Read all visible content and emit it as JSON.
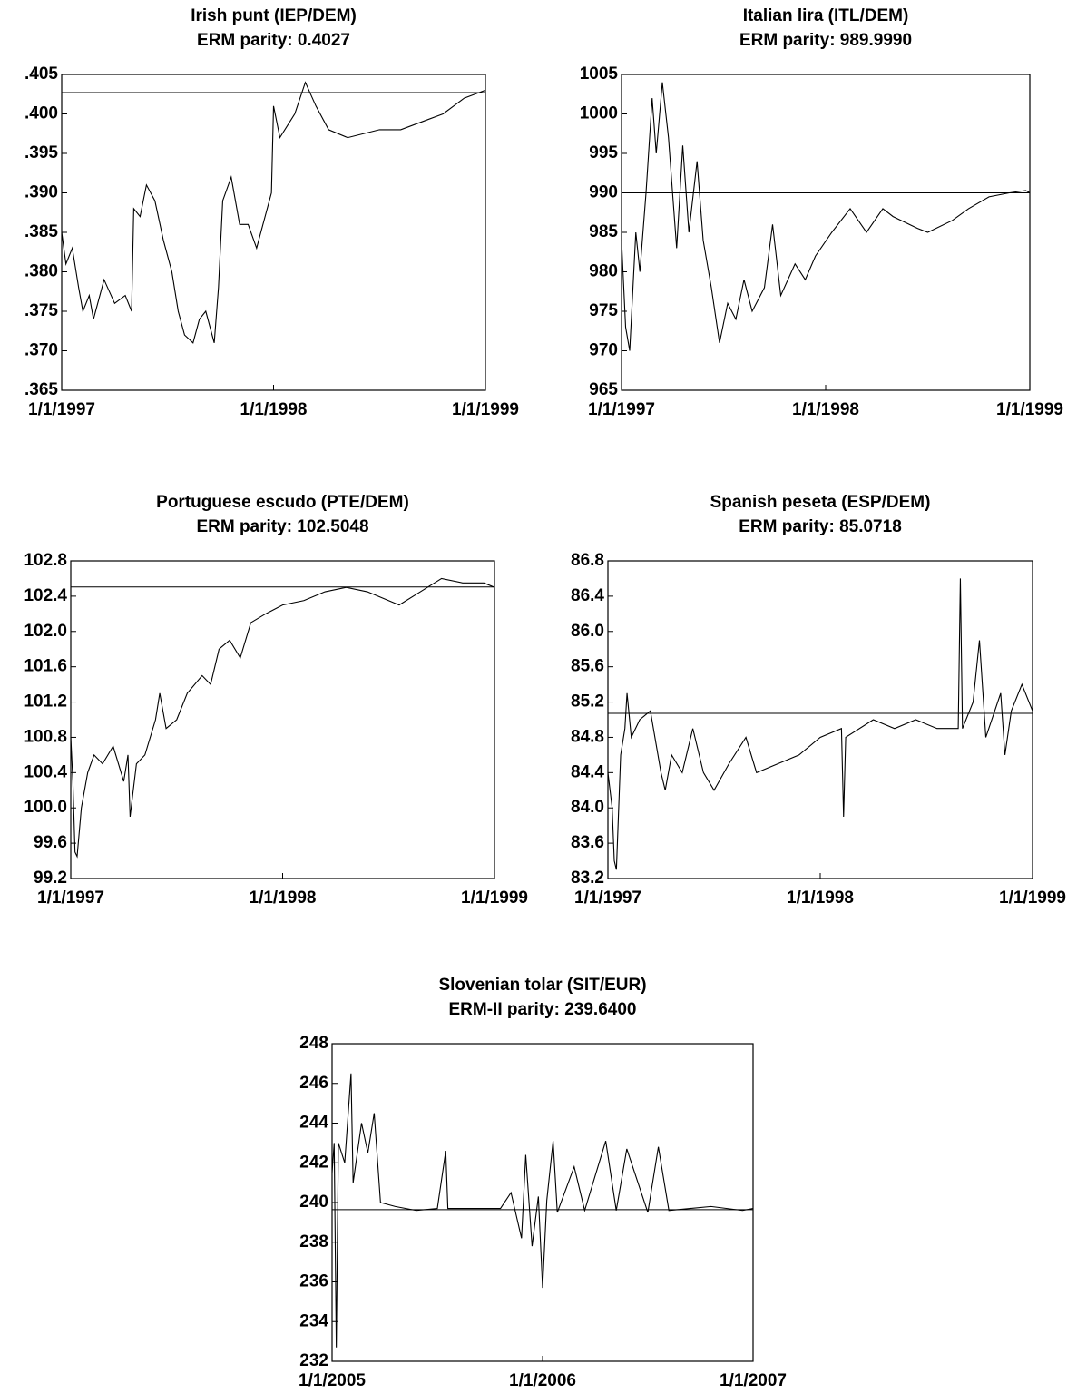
{
  "chart_data": [
    {
      "type": "line",
      "title": "Irish punt (IEP/DEM)",
      "subtitle": "ERM parity: 0.4027",
      "reference_line": 0.4027,
      "color": "#000000",
      "x": [
        1997.0,
        1997.02,
        1997.05,
        1997.08,
        1997.1,
        1997.13,
        1997.15,
        1997.2,
        1997.25,
        1997.3,
        1997.33,
        1997.34,
        1997.37,
        1997.4,
        1997.44,
        1997.48,
        1997.52,
        1997.55,
        1997.58,
        1997.62,
        1997.65,
        1997.68,
        1997.72,
        1997.74,
        1997.76,
        1997.8,
        1997.84,
        1997.88,
        1997.92,
        1997.96,
        1997.99,
        1998.0,
        1998.03,
        1998.1,
        1998.15,
        1998.2,
        1998.26,
        1998.35,
        1998.5,
        1998.6,
        1998.7,
        1998.8,
        1998.85,
        1998.9,
        1999.0
      ],
      "values": [
        0.385,
        0.381,
        0.383,
        0.378,
        0.375,
        0.377,
        0.374,
        0.379,
        0.376,
        0.377,
        0.375,
        0.388,
        0.387,
        0.391,
        0.389,
        0.384,
        0.38,
        0.375,
        0.372,
        0.371,
        0.374,
        0.375,
        0.371,
        0.378,
        0.389,
        0.392,
        0.386,
        0.386,
        0.383,
        0.387,
        0.39,
        0.401,
        0.397,
        0.4,
        0.404,
        0.401,
        0.398,
        0.397,
        0.398,
        0.398,
        0.399,
        0.4,
        0.401,
        0.402,
        0.403
      ],
      "xlim": [
        1997,
        1999
      ],
      "xticks": [
        {
          "value": 1997,
          "label": "1/1/1997"
        },
        {
          "value": 1998,
          "label": "1/1/1998"
        },
        {
          "value": 1999,
          "label": "1/1/1999"
        }
      ],
      "ylim": [
        0.365,
        0.405
      ],
      "yticks": [
        {
          "value": 0.365,
          "label": ".365"
        },
        {
          "value": 0.37,
          "label": ".370"
        },
        {
          "value": 0.375,
          "label": ".375"
        },
        {
          "value": 0.38,
          "label": ".380"
        },
        {
          "value": 0.385,
          "label": ".385"
        },
        {
          "value": 0.39,
          "label": ".390"
        },
        {
          "value": 0.395,
          "label": ".395"
        },
        {
          "value": 0.4,
          "label": ".400"
        },
        {
          "value": 0.405,
          "label": ".405"
        }
      ]
    },
    {
      "type": "line",
      "title": "Italian lira (ITL/DEM)",
      "subtitle": "ERM parity: 989.9990",
      "reference_line": 989.999,
      "color": "#000000",
      "x": [
        1997.0,
        1997.02,
        1997.04,
        1997.07,
        1997.09,
        1997.12,
        1997.15,
        1997.17,
        1997.2,
        1997.23,
        1997.25,
        1997.27,
        1997.3,
        1997.33,
        1997.37,
        1997.4,
        1997.44,
        1997.48,
        1997.52,
        1997.56,
        1997.6,
        1997.64,
        1997.7,
        1997.74,
        1997.78,
        1997.85,
        1997.9,
        1997.95,
        1998.03,
        1998.12,
        1998.2,
        1998.28,
        1998.33,
        1998.45,
        1998.5,
        1998.62,
        1998.7,
        1998.8,
        1998.9,
        1998.98,
        1999.0
      ],
      "values": [
        984,
        973,
        970,
        985,
        980,
        990,
        1002,
        995,
        1004,
        997,
        990,
        983,
        996,
        985,
        994,
        984,
        978,
        971,
        976,
        974,
        979,
        975,
        978,
        986,
        977,
        981,
        979,
        982,
        985,
        988,
        985,
        988,
        987,
        985.5,
        985,
        986.5,
        988,
        989.5,
        990,
        990.3,
        990
      ],
      "xlim": [
        1997,
        1999
      ],
      "xticks": [
        {
          "value": 1997,
          "label": "1/1/1997"
        },
        {
          "value": 1998,
          "label": "1/1/1998"
        },
        {
          "value": 1999,
          "label": "1/1/1999"
        }
      ],
      "ylim": [
        965,
        1005
      ],
      "yticks": [
        965,
        970,
        975,
        980,
        985,
        990,
        995,
        1000,
        1005
      ]
    },
    {
      "type": "line",
      "title": "Portuguese escudo (PTE/DEM)",
      "subtitle": "ERM parity: 102.5048",
      "reference_line": 102.5048,
      "color": "#000000",
      "x": [
        1997.0,
        1997.01,
        1997.02,
        1997.03,
        1997.05,
        1997.08,
        1997.11,
        1997.15,
        1997.2,
        1997.25,
        1997.27,
        1997.28,
        1997.31,
        1997.35,
        1997.4,
        1997.42,
        1997.45,
        1997.5,
        1997.55,
        1997.62,
        1997.66,
        1997.7,
        1997.75,
        1997.8,
        1997.85,
        1997.92,
        1998.0,
        1998.1,
        1998.2,
        1998.3,
        1998.4,
        1998.5,
        1998.55,
        1998.65,
        1998.75,
        1998.85,
        1998.95,
        1999.0
      ],
      "values": [
        100.8,
        100.3,
        99.5,
        99.45,
        100.0,
        100.4,
        100.6,
        100.5,
        100.7,
        100.3,
        100.6,
        99.9,
        100.5,
        100.6,
        101.0,
        101.3,
        100.9,
        101.0,
        101.3,
        101.5,
        101.4,
        101.8,
        101.9,
        101.7,
        102.1,
        102.2,
        102.3,
        102.35,
        102.45,
        102.5,
        102.45,
        102.35,
        102.3,
        102.45,
        102.6,
        102.55,
        102.55,
        102.5
      ],
      "xlim": [
        1997,
        1999
      ],
      "xticks": [
        {
          "value": 1997,
          "label": "1/1/1997"
        },
        {
          "value": 1998,
          "label": "1/1/1998"
        },
        {
          "value": 1999,
          "label": "1/1/1999"
        }
      ],
      "ylim": [
        99.2,
        102.8
      ],
      "yticks": [
        99.2,
        99.6,
        {
          "value": 100,
          "label": "100.0"
        },
        100.4,
        100.8,
        101.2,
        101.6,
        {
          "value": 102,
          "label": "102.0"
        },
        102.4,
        102.8
      ]
    },
    {
      "type": "line",
      "title": "Spanish peseta (ESP/DEM)",
      "subtitle": "ERM parity: 85.0718",
      "reference_line": 85.0718,
      "color": "#000000",
      "x": [
        1997.0,
        1997.02,
        1997.03,
        1997.04,
        1997.06,
        1997.08,
        1997.09,
        1997.11,
        1997.15,
        1997.2,
        1997.25,
        1997.27,
        1997.3,
        1997.35,
        1997.4,
        1997.45,
        1997.5,
        1997.57,
        1997.65,
        1997.7,
        1997.8,
        1997.9,
        1998.0,
        1998.1,
        1998.11,
        1998.12,
        1998.25,
        1998.35,
        1998.45,
        1998.55,
        1998.65,
        1998.66,
        1998.67,
        1998.72,
        1998.75,
        1998.78,
        1998.85,
        1998.87,
        1998.9,
        1998.95,
        1999.0
      ],
      "values": [
        84.4,
        84.0,
        83.4,
        83.3,
        84.6,
        84.9,
        85.3,
        84.8,
        85.0,
        85.1,
        84.4,
        84.2,
        84.6,
        84.4,
        84.9,
        84.4,
        84.2,
        84.5,
        84.8,
        84.4,
        84.5,
        84.6,
        84.8,
        84.9,
        83.9,
        84.8,
        85.0,
        84.9,
        85.0,
        84.9,
        84.9,
        86.6,
        84.9,
        85.2,
        85.9,
        84.8,
        85.3,
        84.6,
        85.1,
        85.4,
        85.1
      ],
      "xlim": [
        1997,
        1999
      ],
      "xticks": [
        {
          "value": 1997,
          "label": "1/1/1997"
        },
        {
          "value": 1998,
          "label": "1/1/1998"
        },
        {
          "value": 1999,
          "label": "1/1/1999"
        }
      ],
      "ylim": [
        83.2,
        86.8
      ],
      "yticks": [
        83.2,
        83.6,
        {
          "value": 84,
          "label": "84.0"
        },
        84.4,
        84.8,
        85.2,
        85.6,
        {
          "value": 86,
          "label": "86.0"
        },
        86.4,
        86.8
      ]
    },
    {
      "type": "line",
      "title": "Slovenian tolar (SIT/EUR)",
      "subtitle": "ERM-II parity: 239.6400",
      "reference_line": 239.64,
      "color": "#000000",
      "x": [
        2005.0,
        2005.01,
        2005.02,
        2005.03,
        2005.06,
        2005.09,
        2005.1,
        2005.14,
        2005.17,
        2005.2,
        2005.23,
        2005.3,
        2005.4,
        2005.5,
        2005.54,
        2005.55,
        2005.8,
        2005.85,
        2005.9,
        2005.92,
        2005.95,
        2005.98,
        2006.0,
        2006.02,
        2006.05,
        2006.07,
        2006.15,
        2006.2,
        2006.3,
        2006.35,
        2006.4,
        2006.5,
        2006.55,
        2006.6,
        2006.8,
        2006.95,
        2007.0
      ],
      "values": [
        241.5,
        243,
        232.7,
        243,
        242,
        246.5,
        241,
        244,
        242.5,
        244.5,
        240,
        239.8,
        239.6,
        239.7,
        242.6,
        239.7,
        239.7,
        240.5,
        238.2,
        242.4,
        237.8,
        240.3,
        235.7,
        240.1,
        243.1,
        239.5,
        241.8,
        239.6,
        243.1,
        239.6,
        242.7,
        239.5,
        242.8,
        239.6,
        239.8,
        239.6,
        239.7
      ],
      "xlim": [
        2005,
        2007
      ],
      "xticks": [
        {
          "value": 2005,
          "label": "1/1/2005"
        },
        {
          "value": 2006,
          "label": "1/1/2006"
        },
        {
          "value": 2007,
          "label": "1/1/2007"
        }
      ],
      "ylim": [
        232,
        248
      ],
      "yticks": [
        232,
        234,
        236,
        238,
        240,
        242,
        244,
        246,
        248
      ]
    }
  ]
}
